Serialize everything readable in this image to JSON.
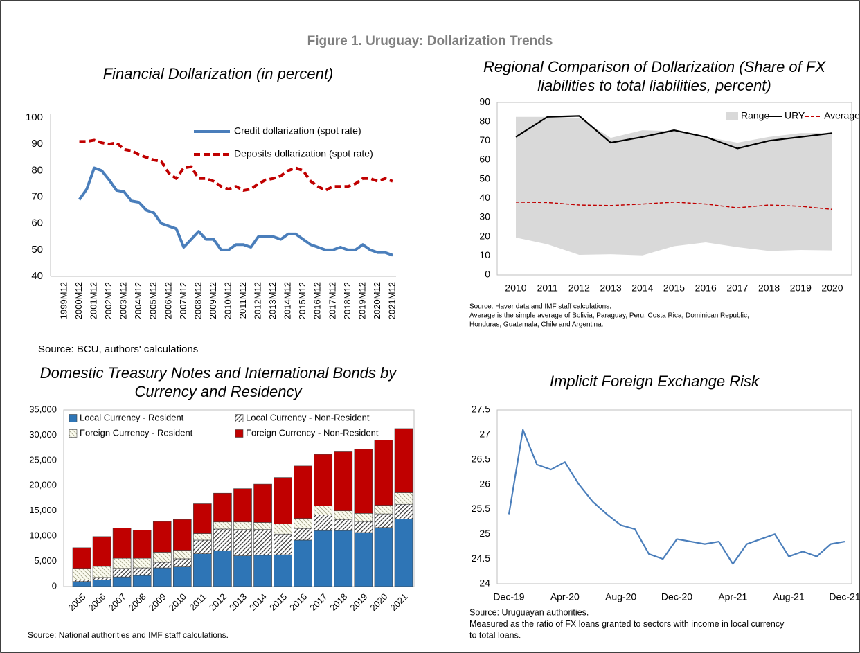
{
  "title": "Figure 1. Uruguay: Dollarization Trends",
  "chart_data": [
    {
      "type": "line",
      "title": [
        "Financial Dollarization (in percent)"
      ],
      "categories": [
        "1999M12",
        null,
        "2000M12",
        null,
        "2001M12",
        null,
        "2002M12",
        null,
        "2003M12",
        null,
        "2004M12",
        null,
        "2005M12",
        null,
        "2006M12",
        null,
        "2007M12",
        null,
        "2008M12",
        null,
        "2009M12",
        null,
        "2010M12",
        null,
        "2011M12",
        null,
        "2012M12",
        null,
        "2013M12",
        null,
        "2014M12",
        null,
        "2015M12",
        null,
        "2016M12",
        null,
        "2017M12",
        null,
        "2018M12",
        null,
        "2019M12",
        null,
        "2020M12",
        null,
        "2021M12"
      ],
      "series": [
        {
          "name": "Credit dollarization (spot rate)",
          "color": "#4a7ebb",
          "line_style": "solid",
          "values": [
            null,
            null,
            69,
            73,
            81,
            80,
            76.5,
            72.5,
            72,
            68.5,
            68,
            65,
            64,
            60,
            59,
            58,
            51,
            54,
            57,
            54,
            54,
            50,
            50,
            52,
            52,
            51,
            55,
            55,
            55,
            54,
            56,
            56,
            54,
            52,
            51,
            50,
            50,
            51,
            50,
            50,
            52,
            50,
            49,
            49,
            48
          ]
        },
        {
          "name": "Deposits dollarization (spot rate)",
          "color": "#c00000",
          "line_style": "dashed",
          "values": [
            null,
            null,
            91,
            91,
            91.5,
            90.5,
            90,
            90.5,
            88,
            87.5,
            86,
            85,
            84,
            83.5,
            79,
            77,
            81,
            81.5,
            77,
            77,
            76,
            74,
            73,
            74,
            72.5,
            73,
            75,
            76.5,
            77,
            78,
            80,
            81,
            80,
            76,
            74,
            72.5,
            74,
            74,
            74,
            75,
            77,
            77,
            76,
            77,
            76
          ]
        }
      ],
      "ylim": [
        40,
        100
      ],
      "yticks": [
        40,
        50,
        60,
        70,
        80,
        90,
        100
      ],
      "notes": [
        "Source: BCU, authors' calculations"
      ]
    },
    {
      "type": "area",
      "title": [
        "Regional Comparison of Dollarization (Share of FX",
        "liabilities to total liabilities, percent)"
      ],
      "categories": [
        "2010",
        "2011",
        "2012",
        "2013",
        "2014",
        "2015",
        "2016",
        "2017",
        "2018",
        "2019",
        "2020"
      ],
      "range": {
        "name": "Range",
        "color": "#d9d9d9",
        "low": [
          19.5,
          16,
          10.5,
          10.8,
          10.2,
          15,
          17,
          14.5,
          12.5,
          13,
          12.8
        ],
        "high": [
          82.5,
          82.5,
          82,
          71.5,
          75.5,
          75,
          72,
          69,
          72,
          74,
          74
        ]
      },
      "series": [
        {
          "name": "URY",
          "color": "#000000",
          "line_style": "solid",
          "values": [
            72,
            82.5,
            83,
            69,
            72,
            75.5,
            72,
            66,
            70,
            72,
            74
          ]
        },
        {
          "name": "Average",
          "color": "#c00000",
          "line_style": "dashed",
          "values": [
            38,
            37.8,
            36.5,
            36.2,
            37,
            38,
            37,
            35,
            36.5,
            35.8,
            34.2
          ]
        }
      ],
      "ylim": [
        0,
        90
      ],
      "yticks": [
        0,
        10,
        20,
        30,
        40,
        50,
        60,
        70,
        80,
        90
      ],
      "notes": [
        "Source: Haver data and IMF staff calculations.",
        "Average is the simple average of Bolivia, Paraguay, Peru, Costa Rica, Dominican Republic,",
        "Honduras, Guatemala, Chile and Argentina."
      ]
    },
    {
      "type": "bar",
      "stacked": true,
      "title": [
        "Domestic Treasury Notes and International Bonds by",
        "Currency and Residency"
      ],
      "categories": [
        "2005",
        "2006",
        "2007",
        "2008",
        "2009",
        "2010",
        "2011",
        "2012",
        "2013",
        "2014",
        "2015",
        "2016",
        "2017",
        "2018",
        "2019",
        "2020",
        "2021"
      ],
      "series": [
        {
          "name": "Local Currency - Resident",
          "color": "#2e75b6",
          "pattern": "solid",
          "values": [
            1000,
            1300,
            1900,
            2200,
            3700,
            3900,
            6500,
            7100,
            6100,
            6200,
            6300,
            9200,
            11100,
            11100,
            10700,
            11700,
            13400
          ]
        },
        {
          "name": "Local Currency - Non-Resident",
          "color": "#404040",
          "pattern": "diagonal",
          "values": [
            300,
            500,
            1700,
            1500,
            1100,
            1600,
            2700,
            4300,
            5200,
            5100,
            4100,
            2300,
            3100,
            2200,
            2200,
            2700,
            2900
          ]
        },
        {
          "name": "Foreign Currency - Resident",
          "color": "#a6a68c",
          "pattern": "light",
          "values": [
            2300,
            2200,
            2000,
            1900,
            2000,
            1700,
            1300,
            1400,
            1500,
            1400,
            2000,
            2000,
            1800,
            1700,
            1600,
            1700,
            2300
          ]
        },
        {
          "name": "Foreign Currency - Non-Resident",
          "color": "#c00000",
          "pattern": "solid",
          "values": [
            4100,
            5900,
            6000,
            5600,
            6100,
            6100,
            5900,
            5700,
            6600,
            7600,
            9200,
            10400,
            10200,
            11700,
            12700,
            12900,
            12700
          ]
        }
      ],
      "ylim": [
        0,
        35000
      ],
      "yticks": [
        0,
        {
          "value": 5000,
          "label": "5,000"
        },
        {
          "value": 10000,
          "label": "10,000"
        },
        {
          "value": 15000,
          "label": "15,000"
        },
        {
          "value": 20000,
          "label": "20,000"
        },
        {
          "value": 25000,
          "label": "25,000"
        },
        {
          "value": 30000,
          "label": "30,000"
        },
        {
          "value": 35000,
          "label": "35,000"
        }
      ],
      "notes": [
        "Source: National authorities and IMF staff calculations."
      ]
    },
    {
      "type": "line",
      "title": [
        "Implicit Foreign Exchange Risk"
      ],
      "categories": [
        "Dec-19",
        null,
        null,
        null,
        "Apr-20",
        null,
        null,
        null,
        "Aug-20",
        null,
        null,
        null,
        "Dec-20",
        null,
        null,
        null,
        "Apr-21",
        null,
        null,
        null,
        "Aug-21",
        null,
        null,
        null,
        "Dec-21"
      ],
      "series": [
        {
          "color": "#4a7ebb",
          "line_style": "solid",
          "values": [
            25.4,
            27.1,
            26.4,
            26.3,
            26.45,
            26.0,
            25.65,
            25.4,
            25.18,
            25.1,
            24.6,
            24.5,
            24.9,
            24.85,
            24.8,
            24.85,
            24.4,
            24.8,
            24.9,
            25.0,
            24.55,
            24.65,
            24.55,
            24.8,
            24.85
          ]
        }
      ],
      "ylim": [
        24,
        27.5
      ],
      "yticks": [
        24,
        24.5,
        25,
        25.5,
        26,
        26.5,
        27,
        27.5
      ],
      "notes": [
        "Source: Uruguayan authorities.",
        "Measured as the ratio of FX loans granted to sectors with income in local currency",
        "to total loans."
      ]
    }
  ]
}
